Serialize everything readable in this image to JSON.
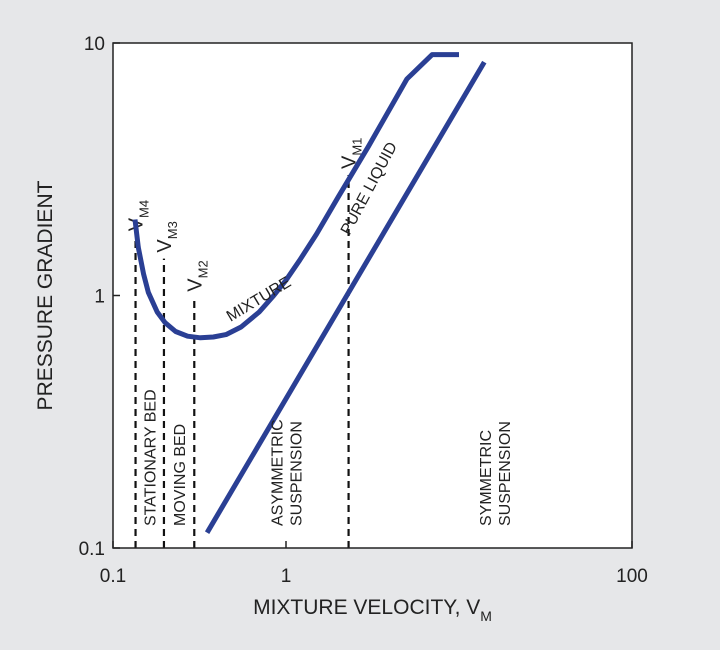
{
  "colors": {
    "background": "#e6e7e9",
    "plot_background": "#ffffff",
    "curve": "#2a3f94",
    "frame": "#222222",
    "marker": "#111111"
  },
  "chart_data": {
    "type": "line",
    "title": "",
    "xlabel": "MIXTURE VELOCITY, V",
    "xlabel_sub": "M",
    "ylabel": "PRESSURE GRADIENT",
    "x_scale": "log",
    "y_scale": "log",
    "xlim": [
      0.1,
      100
    ],
    "ylim": [
      0.1,
      10
    ],
    "grid": false,
    "legend": "none",
    "x_ticks": [
      {
        "value": 0.1,
        "label": "0.1"
      },
      {
        "value": 1,
        "label": "1"
      },
      {
        "value": 100,
        "label": "100"
      }
    ],
    "y_ticks": [
      {
        "value": 0.1,
        "label": "0.1"
      },
      {
        "value": 1,
        "label": "1"
      },
      {
        "value": 10,
        "label": "10"
      }
    ],
    "series": [
      {
        "name": "MIXTURE",
        "x": [
          0.134,
          0.14,
          0.15,
          0.16,
          0.18,
          0.2,
          0.23,
          0.27,
          0.32,
          0.38,
          0.45,
          0.55,
          0.7,
          0.85,
          1.0,
          1.2,
          1.5,
          2.0,
          3.0,
          5.0,
          7.0,
          10.0
        ],
        "y": [
          2.0,
          1.55,
          1.22,
          1.03,
          0.86,
          0.78,
          0.72,
          0.69,
          0.68,
          0.685,
          0.7,
          0.75,
          0.86,
          1.0,
          1.15,
          1.38,
          1.75,
          2.45,
          3.9,
          7.2,
          9.0,
          9.0
        ]
      },
      {
        "name": "PURE LIQUID",
        "x": [
          0.35,
          14.0
        ],
        "y": [
          0.115,
          8.4
        ]
      }
    ],
    "regime_markers": [
      {
        "label": "V",
        "sub": "M4",
        "x": 0.135,
        "y_top": 1.7
      },
      {
        "label": "V",
        "sub": "M3",
        "x": 0.197,
        "y_top": 1.4
      },
      {
        "label": "V",
        "sub": "M2",
        "x": 0.295,
        "y_top": 0.98
      },
      {
        "label": "V",
        "sub": "M1",
        "x": 2.3,
        "y_top": 3.0
      }
    ],
    "regions": [
      {
        "lines": [
          "STATIONARY BED"
        ],
        "x": 0.163
      },
      {
        "lines": [
          "MOVING BED"
        ],
        "x": 0.24
      },
      {
        "lines": [
          "ASYMMETRIC",
          "SUSPENSION"
        ],
        "x": 1.0
      },
      {
        "lines": [
          "SYMMETRIC",
          "SUSPENSION"
        ],
        "x": 16.0
      }
    ]
  }
}
